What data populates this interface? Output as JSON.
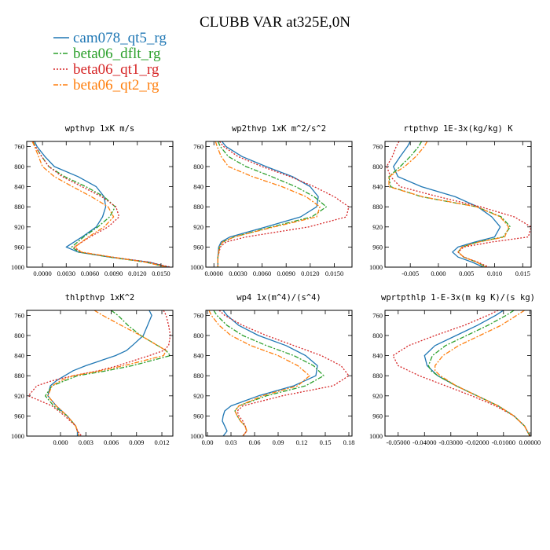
{
  "figure": {
    "title": "CLUBB VAR at325E,0N"
  },
  "legend": [
    {
      "name": "cam078_qt5_rg",
      "color": "#1f77b4",
      "dash": ""
    },
    {
      "name": "beta06_dflt_rg",
      "color": "#2ca02c",
      "dash": "6 2 2 2"
    },
    {
      "name": "beta06_qt1_rg",
      "color": "#d62728",
      "dash": "2 2"
    },
    {
      "name": "beta06_qt2_rg",
      "color": "#ff7f0e",
      "dash": "6 2 2 2"
    }
  ],
  "chart_data": [
    {
      "type": "line",
      "title": "wpthvp  1xK m/s",
      "xlim": [
        -0.002,
        0.0165
      ],
      "ylim": [
        1000,
        750
      ],
      "xticks": [
        0,
        0.003,
        0.006,
        0.009,
        0.012,
        0.015
      ],
      "xtick_labels": [
        "0.0000",
        "0.0030",
        "0.0060",
        "0.0090",
        "0.0120",
        "0.0150"
      ],
      "yticks": [
        760,
        800,
        840,
        880,
        920,
        960,
        1000
      ],
      "ytick_labels": [
        "760",
        "800",
        "840",
        "880",
        "920",
        "960",
        "1000"
      ],
      "y": [
        750,
        760,
        780,
        800,
        820,
        840,
        860,
        880,
        900,
        920,
        940,
        960,
        970,
        980,
        990,
        1000
      ],
      "series": [
        {
          "name": "cam078_qt5_rg",
          "values": [
            -0.001,
            -0.0007,
            0.0003,
            0.0015,
            0.0045,
            0.0068,
            0.0078,
            0.008,
            0.0076,
            0.0068,
            0.005,
            0.003,
            0.0045,
            0.0085,
            0.0135,
            0.016
          ]
        },
        {
          "name": "beta06_dflt_rg",
          "values": [
            -0.0012,
            -0.0009,
            -0.0001,
            0.0008,
            0.0028,
            0.0055,
            0.0078,
            0.0092,
            0.0085,
            0.007,
            0.0052,
            0.0037,
            0.0046,
            0.0085,
            0.013,
            0.0158
          ]
        },
        {
          "name": "beta06_qt1_rg",
          "values": [
            -0.0012,
            -0.0009,
            -0.0001,
            0.0008,
            0.0025,
            0.005,
            0.0075,
            0.0093,
            0.0097,
            0.0083,
            0.006,
            0.004,
            0.0048,
            0.0088,
            0.0135,
            0.0162
          ]
        },
        {
          "name": "beta06_qt2_rg",
          "values": [
            -0.0013,
            -0.001,
            -0.0005,
            0.0,
            0.0015,
            0.0038,
            0.0062,
            0.0083,
            0.009,
            0.0078,
            0.0058,
            0.0041,
            0.0049,
            0.0088,
            0.013,
            0.0158
          ]
        }
      ]
    },
    {
      "type": "line",
      "title": "wp2thvp  1xK m^2/s^2",
      "xlim": [
        -0.001,
        0.0172
      ],
      "ylim": [
        1000,
        750
      ],
      "xticks": [
        0,
        0.003,
        0.006,
        0.009,
        0.012,
        0.015
      ],
      "xtick_labels": [
        "0.0000",
        "0.0030",
        "0.0060",
        "0.0090",
        "0.0120",
        "0.0150"
      ],
      "yticks": [
        760,
        800,
        840,
        880,
        920,
        960,
        1000
      ],
      "ytick_labels": [
        "760",
        "800",
        "840",
        "880",
        "920",
        "960",
        "1000"
      ],
      "y": [
        750,
        760,
        780,
        800,
        820,
        840,
        860,
        880,
        900,
        920,
        940,
        950,
        960,
        980,
        1000
      ],
      "series": [
        {
          "name": "cam078_qt5_rg",
          "values": [
            0.001,
            0.0015,
            0.0035,
            0.0065,
            0.0098,
            0.012,
            0.013,
            0.0128,
            0.0108,
            0.0065,
            0.002,
            0.0009,
            0.0006,
            0.0005,
            0.0005
          ]
        },
        {
          "name": "beta06_dflt_rg",
          "values": [
            0.0005,
            0.0008,
            0.0018,
            0.004,
            0.0072,
            0.0102,
            0.0125,
            0.014,
            0.0122,
            0.0072,
            0.0025,
            0.0011,
            0.0007,
            0.0005,
            0.0005
          ]
        },
        {
          "name": "beta06_qt1_rg",
          "values": [
            0.0007,
            0.0012,
            0.003,
            0.006,
            0.0095,
            0.0125,
            0.015,
            0.0168,
            0.0165,
            0.0118,
            0.004,
            0.0015,
            0.0008,
            0.0005,
            0.0005
          ]
        },
        {
          "name": "beta06_qt2_rg",
          "values": [
            0.0002,
            0.0004,
            0.0009,
            0.0018,
            0.0048,
            0.0085,
            0.0115,
            0.0132,
            0.0128,
            0.0075,
            0.0025,
            0.0011,
            0.0007,
            0.0005,
            0.0005
          ]
        }
      ]
    },
    {
      "type": "line",
      "title": "rtpthvp  1E-3x(kg/kg) K",
      "xlim": [
        -0.0095,
        0.0165
      ],
      "ylim": [
        1000,
        750
      ],
      "xticks": [
        -0.005,
        0,
        0.005,
        0.01,
        0.015
      ],
      "xtick_labels": [
        "-0.005",
        "0.000",
        "0.005",
        "0.010",
        "0.015"
      ],
      "yticks": [
        760,
        800,
        840,
        880,
        920,
        960,
        1000
      ],
      "ytick_labels": [
        "760",
        "800",
        "840",
        "880",
        "920",
        "960",
        "1000"
      ],
      "y": [
        750,
        760,
        780,
        800,
        820,
        840,
        860,
        880,
        900,
        920,
        940,
        950,
        960,
        970,
        980,
        990,
        1000
      ],
      "series": [
        {
          "name": "cam078_qt5_rg",
          "values": [
            -0.005,
            -0.0055,
            -0.0068,
            -0.008,
            -0.0072,
            -0.003,
            0.003,
            0.007,
            0.0095,
            0.011,
            0.01,
            0.0065,
            0.0035,
            0.0025,
            0.0035,
            0.006,
            0.008
          ]
        },
        {
          "name": "beta06_dflt_rg",
          "values": [
            -0.003,
            -0.0035,
            -0.005,
            -0.0068,
            -0.0088,
            -0.0085,
            -0.003,
            0.0068,
            0.0112,
            0.0128,
            0.0115,
            0.007,
            0.0042,
            0.0035,
            0.0045,
            0.0068,
            0.0085
          ]
        },
        {
          "name": "beta06_qt1_rg",
          "values": [
            -0.007,
            -0.0075,
            -0.0082,
            -0.0092,
            -0.0085,
            -0.0068,
            0.0,
            0.0075,
            0.0135,
            0.0165,
            0.016,
            0.0095,
            0.0045,
            0.0035,
            0.0045,
            0.007,
            0.009
          ]
        },
        {
          "name": "beta06_qt2_rg",
          "values": [
            -0.002,
            -0.0025,
            -0.004,
            -0.006,
            -0.0088,
            -0.0088,
            -0.0028,
            0.0068,
            0.011,
            0.0125,
            0.0118,
            0.0072,
            0.0042,
            0.0035,
            0.0045,
            0.0068,
            0.0085
          ]
        }
      ]
    },
    {
      "type": "line",
      "title": "thlpthvp  1xK^2",
      "xlim": [
        -0.004,
        0.0133
      ],
      "ylim": [
        1000,
        750
      ],
      "xticks": [
        0,
        0.003,
        0.006,
        0.009,
        0.012
      ],
      "xtick_labels": [
        "0.000",
        "0.003",
        "0.006",
        "0.009",
        "0.012"
      ],
      "yticks": [
        760,
        800,
        840,
        880,
        920,
        960,
        1000
      ],
      "ytick_labels": [
        "760",
        "800",
        "840",
        "880",
        "920",
        "960",
        "1000"
      ],
      "y": [
        750,
        760,
        780,
        800,
        820,
        830,
        840,
        860,
        870,
        880,
        890,
        900,
        920,
        940,
        960,
        980,
        990,
        1000
      ],
      "series": [
        {
          "name": "cam078_qt5_rg",
          "values": [
            0.0105,
            0.0108,
            0.0103,
            0.0098,
            0.0085,
            0.0078,
            0.0065,
            0.003,
            0.0015,
            0.0005,
            -0.0005,
            -0.0012,
            -0.0015,
            -0.0005,
            0.0008,
            0.0018,
            0.002,
            0.002
          ]
        },
        {
          "name": "beta06_dflt_rg",
          "values": [
            0.006,
            0.0068,
            0.008,
            0.0095,
            0.0115,
            0.0125,
            0.013,
            0.0085,
            0.0055,
            0.002,
            0.0005,
            -0.001,
            -0.0018,
            -0.0008,
            0.0008,
            0.0018,
            0.002,
            0.0022
          ]
        },
        {
          "name": "beta06_qt1_rg",
          "values": [
            0.0122,
            0.0125,
            0.0128,
            0.013,
            0.0128,
            0.0122,
            0.0105,
            0.0068,
            0.0045,
            0.0015,
            -0.001,
            -0.0028,
            -0.0038,
            -0.001,
            0.0005,
            0.0018,
            0.002,
            0.0025
          ]
        },
        {
          "name": "beta06_qt2_rg",
          "values": [
            0.004,
            0.005,
            0.0072,
            0.0095,
            0.0115,
            0.0125,
            0.0122,
            0.0075,
            0.0048,
            0.0015,
            0.0,
            -0.001,
            -0.0015,
            -0.0005,
            0.0008,
            0.0018,
            0.002,
            0.0022
          ]
        }
      ]
    },
    {
      "type": "line",
      "title": "wp4  1x(m^4)/(s^4)",
      "xlim": [
        -0.002,
        0.184
      ],
      "ylim": [
        1000,
        750
      ],
      "xticks": [
        0,
        0.03,
        0.06,
        0.09,
        0.12,
        0.15,
        0.18
      ],
      "xtick_labels": [
        "0.00",
        "0.03",
        "0.06",
        "0.09",
        "0.12",
        "0.15",
        "0.18"
      ],
      "yticks": [
        760,
        800,
        840,
        880,
        920,
        960,
        1000
      ],
      "ytick_labels": [
        "760",
        "800",
        "840",
        "880",
        "920",
        "960",
        "1000"
      ],
      "y": [
        750,
        760,
        780,
        800,
        820,
        840,
        860,
        880,
        900,
        920,
        940,
        950,
        960,
        970,
        980,
        990,
        1000
      ],
      "series": [
        {
          "name": "cam078_qt5_rg",
          "values": [
            0.02,
            0.025,
            0.04,
            0.065,
            0.1,
            0.125,
            0.14,
            0.138,
            0.11,
            0.065,
            0.03,
            0.022,
            0.02,
            0.019,
            0.022,
            0.025,
            0.02
          ]
        },
        {
          "name": "beta06_dflt_rg",
          "values": [
            0.008,
            0.012,
            0.025,
            0.045,
            0.075,
            0.11,
            0.135,
            0.148,
            0.125,
            0.075,
            0.04,
            0.035,
            0.038,
            0.042,
            0.048,
            0.05,
            0.045
          ]
        },
        {
          "name": "beta06_qt1_rg",
          "values": [
            0.015,
            0.022,
            0.045,
            0.075,
            0.11,
            0.145,
            0.17,
            0.18,
            0.16,
            0.095,
            0.045,
            0.038,
            0.04,
            0.045,
            0.048,
            0.05,
            0.045
          ]
        },
        {
          "name": "beta06_qt2_rg",
          "values": [
            0.002,
            0.005,
            0.015,
            0.03,
            0.055,
            0.09,
            0.115,
            0.13,
            0.115,
            0.07,
            0.04,
            0.035,
            0.038,
            0.042,
            0.048,
            0.05,
            0.045
          ]
        }
      ]
    },
    {
      "type": "line",
      "title": "wprtpthlp  1-E-3x(m kg K)/(s kg)",
      "xlim": [
        -0.055,
        0.0005
      ],
      "ylim": [
        1000,
        750
      ],
      "xticks": [
        -0.05,
        -0.04,
        -0.03,
        -0.02,
        -0.01,
        0
      ],
      "xtick_labels": [
        "-0.05000",
        "-0.04000",
        "-0.03000",
        "-0.02000",
        "-0.01000",
        "0.00000"
      ],
      "yticks": [
        760,
        800,
        840,
        880,
        920,
        960,
        1000
      ],
      "ytick_labels": [
        "760",
        "800",
        "840",
        "880",
        "920",
        "960",
        "1000"
      ],
      "y": [
        750,
        760,
        780,
        800,
        820,
        840,
        860,
        870,
        880,
        900,
        920,
        940,
        960,
        980,
        1000
      ],
      "series": [
        {
          "name": "cam078_qt5_rg",
          "values": [
            -0.01,
            -0.013,
            -0.02,
            -0.028,
            -0.036,
            -0.04,
            -0.039,
            -0.037,
            -0.035,
            -0.028,
            -0.02,
            -0.012,
            -0.006,
            -0.002,
            0.0
          ]
        },
        {
          "name": "beta06_dflt_rg",
          "values": [
            -0.006,
            -0.009,
            -0.016,
            -0.024,
            -0.032,
            -0.037,
            -0.0385,
            -0.0375,
            -0.035,
            -0.028,
            -0.02,
            -0.012,
            -0.006,
            -0.002,
            0.0
          ]
        },
        {
          "name": "beta06_qt1_rg",
          "values": [
            -0.012,
            -0.016,
            -0.025,
            -0.036,
            -0.046,
            -0.052,
            -0.05,
            -0.046,
            -0.042,
            -0.032,
            -0.022,
            -0.013,
            -0.006,
            -0.002,
            0.0
          ]
        },
        {
          "name": "beta06_qt2_rg",
          "values": [
            -0.002,
            -0.005,
            -0.011,
            -0.019,
            -0.027,
            -0.033,
            -0.036,
            -0.036,
            -0.034,
            -0.028,
            -0.02,
            -0.012,
            -0.006,
            -0.002,
            0.0
          ]
        }
      ]
    }
  ]
}
